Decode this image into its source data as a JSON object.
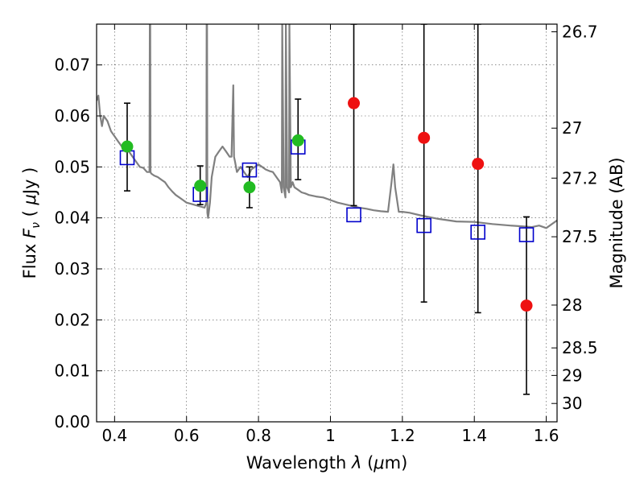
{
  "chart_data": {
    "type": "scatter",
    "xlabel": "Wavelength  λ (μm)",
    "ylabel": "Flux  Fν  ( μJy )",
    "ylabel_right": "Magnitude (AB)",
    "xlim": [
      0.35,
      1.63
    ],
    "ylim": [
      0.0,
      0.078
    ],
    "grid": true,
    "x_ticks": [
      0.4,
      0.6,
      0.8,
      1.0,
      1.2,
      1.4,
      1.6
    ],
    "x_tick_labels": [
      "0.4",
      "0.6",
      "0.8",
      "1",
      "1.2",
      "1.4",
      "1.6"
    ],
    "y_ticks": [
      0.0,
      0.01,
      0.02,
      0.03,
      0.04,
      0.05,
      0.06,
      0.07
    ],
    "y_tick_labels": [
      "0.00",
      "0.01",
      "0.02",
      "0.03",
      "0.04",
      "0.05",
      "0.06",
      "0.07"
    ],
    "right_ticks": [
      {
        "label": "26.7",
        "flux": 0.0765
      },
      {
        "label": "27",
        "flux": 0.0576
      },
      {
        "label": "27.2",
        "flux": 0.0478
      },
      {
        "label": "27.5",
        "flux": 0.0363
      },
      {
        "label": "28",
        "flux": 0.0229
      },
      {
        "label": "28.5",
        "flux": 0.0145
      },
      {
        "label": "29",
        "flux": 0.0091
      },
      {
        "label": "30",
        "flux": 0.0036
      }
    ],
    "colors": {
      "model": "#808080",
      "model_points": "#0000cc",
      "optical": "#22bb22",
      "nir": "#ee1111",
      "errorbar": "#000000"
    },
    "series": [
      {
        "kind": "model_spectrum",
        "x": [
          0.35,
          0.355,
          0.36,
          0.365,
          0.37,
          0.38,
          0.39,
          0.4,
          0.41,
          0.42,
          0.43,
          0.44,
          0.45,
          0.46,
          0.47,
          0.48,
          0.49,
          0.497,
          0.498,
          0.499,
          0.5,
          0.501,
          0.502,
          0.51,
          0.52,
          0.53,
          0.54,
          0.55,
          0.56,
          0.57,
          0.58,
          0.59,
          0.6,
          0.61,
          0.62,
          0.63,
          0.64,
          0.65,
          0.655,
          0.656,
          0.657,
          0.658,
          0.66,
          0.665,
          0.67,
          0.68,
          0.69,
          0.7,
          0.71,
          0.72,
          0.725,
          0.73,
          0.732,
          0.735,
          0.74,
          0.75,
          0.76,
          0.77,
          0.78,
          0.79,
          0.8,
          0.81,
          0.82,
          0.83,
          0.84,
          0.85,
          0.86,
          0.865,
          0.866,
          0.87,
          0.875,
          0.876,
          0.88,
          0.885,
          0.886,
          0.89,
          0.895,
          0.9,
          0.91,
          0.92,
          0.93,
          0.94,
          0.96,
          0.98,
          1.0,
          1.02,
          1.05,
          1.08,
          1.1,
          1.12,
          1.14,
          1.16,
          1.17,
          1.175,
          1.18,
          1.19,
          1.2,
          1.22,
          1.25,
          1.3,
          1.35,
          1.4,
          1.45,
          1.5,
          1.54,
          1.56,
          1.58,
          1.6,
          1.63
        ],
        "y": [
          0.063,
          0.064,
          0.06,
          0.058,
          0.06,
          0.059,
          0.057,
          0.056,
          0.055,
          0.054,
          0.053,
          0.053,
          0.052,
          0.051,
          0.05,
          0.0498,
          0.049,
          0.049,
          0.078,
          0.078,
          0.049,
          0.0488,
          0.0487,
          0.0483,
          0.048,
          0.0475,
          0.047,
          0.046,
          0.0452,
          0.0445,
          0.044,
          0.0435,
          0.043,
          0.0428,
          0.0426,
          0.0424,
          0.0422,
          0.042,
          0.043,
          0.078,
          0.078,
          0.041,
          0.04,
          0.043,
          0.048,
          0.052,
          0.053,
          0.054,
          0.053,
          0.052,
          0.052,
          0.066,
          0.052,
          0.051,
          0.049,
          0.05,
          0.049,
          0.048,
          0.0495,
          0.05,
          0.0505,
          0.05,
          0.0495,
          0.0492,
          0.049,
          0.048,
          0.047,
          0.045,
          0.078,
          0.046,
          0.044,
          0.078,
          0.046,
          0.045,
          0.078,
          0.046,
          0.047,
          0.046,
          0.0455,
          0.045,
          0.0448,
          0.0445,
          0.0442,
          0.044,
          0.0435,
          0.043,
          0.0425,
          0.042,
          0.0418,
          0.0415,
          0.0413,
          0.0412,
          0.047,
          0.0505,
          0.046,
          0.0412,
          0.0412,
          0.041,
          0.0405,
          0.0398,
          0.0393,
          0.0392,
          0.0388,
          0.0385,
          0.0383,
          0.0382,
          0.0385,
          0.038,
          0.0395
        ]
      },
      {
        "kind": "model_photometry",
        "marker": "open-square",
        "x": [
          0.435,
          0.638,
          0.775,
          0.91,
          1.065,
          1.26,
          1.41,
          1.545
        ],
        "y": [
          0.0518,
          0.0446,
          0.0494,
          0.0539,
          0.0406,
          0.0385,
          0.0372,
          0.0367
        ]
      },
      {
        "kind": "observed_optical",
        "marker": "filled-circle",
        "x": [
          0.435,
          0.638,
          0.775,
          0.91
        ],
        "y": [
          0.054,
          0.0463,
          0.046,
          0.0552
        ],
        "yerr_low": [
          0.0087,
          0.0037,
          0.004,
          0.0077
        ],
        "yerr_high": [
          0.0085,
          0.0039,
          0.004,
          0.0081
        ]
      },
      {
        "kind": "observed_nir",
        "marker": "filled-circle",
        "x": [
          1.065,
          1.26,
          1.41,
          1.545
        ],
        "y": [
          0.0625,
          0.0557,
          0.0506,
          0.0228
        ],
        "yerr_low": [
          0.0201,
          0.0322,
          0.0292,
          0.0174
        ],
        "yerr_high": [
          0.0155,
          0.0223,
          0.0274,
          0.0174
        ]
      }
    ]
  }
}
